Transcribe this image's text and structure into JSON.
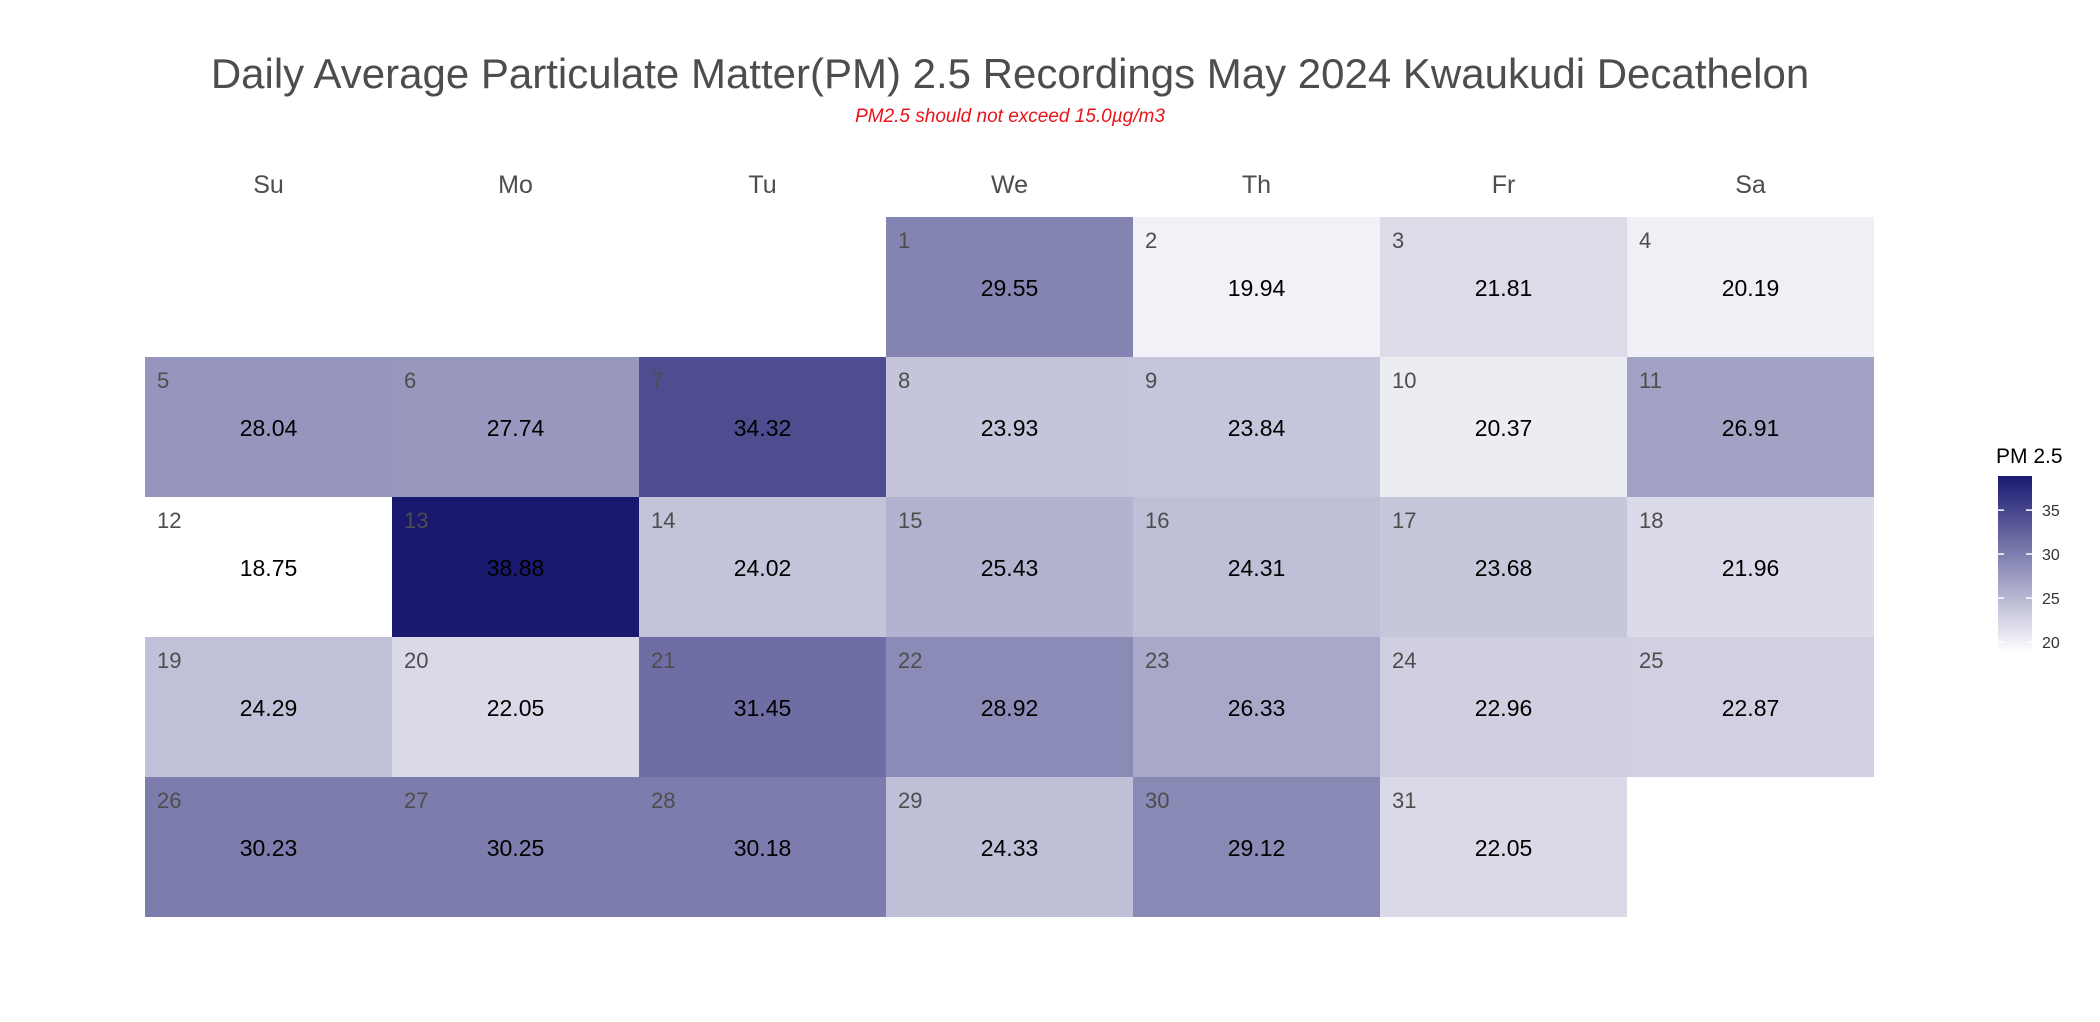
{
  "chart_data": {
    "type": "heatmap",
    "title": "Daily Average Particulate Matter(PM) 2.5 Recordings May 2024 Kwaukudi Decathelon",
    "subtitle": "PM2.5 should not exceed 15.0µg/m3",
    "weekdays": [
      "Su",
      "Mo",
      "Tu",
      "We",
      "Th",
      "Fr",
      "Sa"
    ],
    "first_weekday_index": 3,
    "days": [
      1,
      2,
      3,
      4,
      5,
      6,
      7,
      8,
      9,
      10,
      11,
      12,
      13,
      14,
      15,
      16,
      17,
      18,
      19,
      20,
      21,
      22,
      23,
      24,
      25,
      26,
      27,
      28,
      29,
      30,
      31
    ],
    "values": [
      29.55,
      19.94,
      21.81,
      20.19,
      28.04,
      27.74,
      34.32,
      23.93,
      23.84,
      20.37,
      26.91,
      18.75,
      38.88,
      24.02,
      25.43,
      24.31,
      23.68,
      21.96,
      24.29,
      22.05,
      31.45,
      28.92,
      26.33,
      22.96,
      22.87,
      30.23,
      30.25,
      30.18,
      24.33,
      29.12,
      22.05
    ],
    "value_labels": [
      "29.55",
      "19.94",
      "21.81",
      "20.19",
      "28.04",
      "27.74",
      "34.32",
      "23.93",
      "23.84",
      "20.37",
      "26.91",
      "18.75",
      "38.88",
      "24.02",
      "25.43",
      "24.31",
      "23.68",
      "21.96",
      "24.29",
      "22.05",
      "31.45",
      "28.92",
      "26.33",
      "22.96",
      "22.87",
      "30.23",
      "30.25",
      "30.18",
      "24.33",
      "29.12",
      "22.05"
    ],
    "legend": {
      "title": "PM 2.5",
      "position": "right",
      "ticks": [
        20,
        25,
        30,
        35
      ],
      "tick_labels": [
        "20",
        "25",
        "30",
        "35"
      ]
    },
    "color_scale": {
      "low": "#ffffff",
      "high": "#191970",
      "min": 18.75,
      "max": 38.88
    },
    "grid": false
  }
}
